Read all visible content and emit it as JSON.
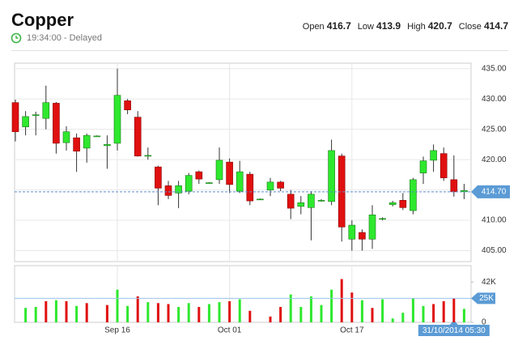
{
  "header": {
    "title": "Copper",
    "time": "19:34:00 - Delayed",
    "quote": [
      {
        "label": "Open",
        "value": 416.7
      },
      {
        "label": "Low",
        "value": 413.9
      },
      {
        "label": "High",
        "value": 420.7
      },
      {
        "label": "Close",
        "value": 414.7
      }
    ]
  },
  "chart_data": [
    {
      "type": "candlestick",
      "categories": [
        null,
        null,
        null,
        null,
        null,
        null,
        null,
        null,
        null,
        null,
        "Sep 16",
        null,
        null,
        null,
        null,
        null,
        null,
        null,
        null,
        null,
        null,
        "Oct 01",
        null,
        null,
        null,
        null,
        null,
        null,
        null,
        null,
        null,
        null,
        null,
        "Oct 17",
        null,
        null,
        null,
        null,
        null,
        null,
        null,
        null,
        null,
        null,
        null
      ],
      "open": [
        429.4,
        425.4,
        427.3,
        426.8,
        429.3,
        422.8,
        423.6,
        421.9,
        423.9,
        422.3,
        422.7,
        429.7,
        427.0,
        420.7,
        418.8,
        415.7,
        414.5,
        414.8,
        418.0,
        416.2,
        416.7,
        419.6,
        414.8,
        417.6,
        413.5,
        415.0,
        416.3,
        414.3,
        412.3,
        412.1,
        413.3,
        413.1,
        420.6,
        406.9,
        408.0,
        406.9,
        410.3,
        412.6,
        413.3,
        411.6,
        417.8,
        419.9,
        421.0,
        416.7,
        414.7
      ],
      "high": [
        429.9,
        428.0,
        427.9,
        432.2,
        429.5,
        425.5,
        424.3,
        424.3,
        424.0,
        424.0,
        435.0,
        430.0,
        428.0,
        422.0,
        419.0,
        416.5,
        416.5,
        417.8,
        418.2,
        416.3,
        422.0,
        420.2,
        419.8,
        418.0,
        413.6,
        417.0,
        416.5,
        415.0,
        414.0,
        414.8,
        413.5,
        423.3,
        421.0,
        410.0,
        408.5,
        412.5,
        410.5,
        413.2,
        414.5,
        417.0,
        420.5,
        422.5,
        422.0,
        420.7,
        416.0
      ],
      "low": [
        423.0,
        424.0,
        424.0,
        425.0,
        421.0,
        421.5,
        418.0,
        419.5,
        423.8,
        418.5,
        421.5,
        427.5,
        420.5,
        420.0,
        412.5,
        413.5,
        412.0,
        414.3,
        416.0,
        416.1,
        416.0,
        414.5,
        414.5,
        412.5,
        413.4,
        414.0,
        414.8,
        410.2,
        411.0,
        406.7,
        413.1,
        412.5,
        406.5,
        405.0,
        405.0,
        405.3,
        410.0,
        412.3,
        411.7,
        411.0,
        416.0,
        418.0,
        416.5,
        413.9,
        413.5
      ],
      "close": [
        424.6,
        427.1,
        427.4,
        429.4,
        422.7,
        424.6,
        421.4,
        424.0,
        423.9,
        422.5,
        430.6,
        428.2,
        420.6,
        420.7,
        415.3,
        414.1,
        415.7,
        417.4,
        416.8,
        416.2,
        419.9,
        415.9,
        418.0,
        413.2,
        413.5,
        416.3,
        415.3,
        412.0,
        412.9,
        414.3,
        413.3,
        421.5,
        408.9,
        409.2,
        406.9,
        410.9,
        410.3,
        412.9,
        412.1,
        416.7,
        419.8,
        421.5,
        417.0,
        414.7,
        414.9
      ],
      "up_color": "#2ee82e",
      "down_color": "#e01010",
      "ylim": [
        403.2,
        435.9
      ],
      "yticks": [
        {
          "value": 405,
          "label": "405.00"
        },
        {
          "value": 410,
          "label": "410.00"
        },
        {
          "value": 415,
          "label": "415.00"
        },
        {
          "value": 420,
          "label": "420.00"
        },
        {
          "value": 425,
          "label": "425.00"
        },
        {
          "value": 430,
          "label": "430.00"
        },
        {
          "value": 435,
          "label": "435.00"
        }
      ],
      "grid": true,
      "last_price": {
        "value": 414.7,
        "label": "414.70"
      },
      "crosshair_label": "31/10/2014 05:30"
    },
    {
      "type": "bar",
      "values": [
        null,
        15000,
        16000,
        22000,
        23000,
        22000,
        17000,
        20000,
        null,
        18000,
        34000,
        17000,
        27000,
        21000,
        20000,
        19000,
        16000,
        20000,
        16000,
        19000,
        21000,
        22000,
        24000,
        12000,
        null,
        6000,
        16000,
        29000,
        16000,
        27000,
        18000,
        34000,
        45000,
        31000,
        23000,
        15000,
        24000,
        4000,
        10000,
        25000,
        17000,
        19000,
        22000,
        25000,
        14000
      ],
      "colors": [
        null,
        "#2ee82e",
        "#2ee82e",
        "#e01010",
        "#2ee82e",
        "#e01010",
        "#2ee82e",
        "#e01010",
        null,
        "#e01010",
        "#2ee82e",
        "#2ee82e",
        "#e01010",
        "#2ee82e",
        "#e01010",
        "#e01010",
        "#2ee82e",
        "#2ee82e",
        "#e01010",
        "#2ee82e",
        "#2ee82e",
        "#e01010",
        "#2ee82e",
        "#e01010",
        null,
        "#e01010",
        "#e01010",
        "#2ee82e",
        "#2ee82e",
        "#2ee82e",
        "#2ee82e",
        "#2ee82e",
        "#e01010",
        "#e01010",
        "#2ee82e",
        "#e01010",
        "#2ee82e",
        "#2ee82e",
        "#2ee82e",
        "#2ee82e",
        "#2ee82e",
        "#e01010",
        "#e01010",
        "#e01010",
        "#2ee82e"
      ],
      "ylim": [
        0,
        59000
      ],
      "yticks": [
        0,
        {
          "value": 42000,
          "label": "42K"
        }
      ],
      "last_volume": {
        "value": 25000,
        "label": "25K"
      }
    }
  ]
}
